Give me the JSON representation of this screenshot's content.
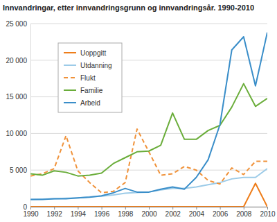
{
  "chart_data": {
    "type": "line",
    "title": "Innvandringar, etter innvandringsgrunn og innvandringsår. 1990-2010",
    "x": [
      1990,
      1991,
      1992,
      1993,
      1994,
      1995,
      1996,
      1997,
      1998,
      1999,
      2000,
      2001,
      2002,
      2003,
      2004,
      2005,
      2006,
      2007,
      2008,
      2009,
      2010
    ],
    "xlim": [
      1990,
      2010
    ],
    "xticks": [
      1990,
      1992,
      1994,
      1996,
      1998,
      2000,
      2002,
      2004,
      2006,
      2008,
      2010
    ],
    "ylim": [
      0,
      25000
    ],
    "yticks": [
      0,
      {
        "value": 5000,
        "label": "5 000"
      },
      {
        "value": 10000,
        "label": "10 000"
      },
      {
        "value": 15000,
        "label": "15 000"
      },
      {
        "value": 20000,
        "label": "20 000"
      },
      {
        "value": 25000,
        "label": "25 000"
      }
    ],
    "grid": true,
    "legend": "upper left",
    "series": [
      {
        "name": "Uoppgitt",
        "color": "#ee7d1a",
        "line_style": "solid",
        "values": [
          0,
          0,
          0,
          0,
          0,
          0,
          0,
          0,
          0,
          0,
          0,
          0,
          0,
          0,
          0,
          0,
          0,
          0,
          0,
          3200,
          0
        ]
      },
      {
        "name": "Utdanning",
        "color": "#9ccbe8",
        "line_style": "solid",
        "values": [
          1000,
          1050,
          1100,
          1150,
          1200,
          1350,
          1450,
          1600,
          1850,
          1950,
          2000,
          2300,
          2500,
          2500,
          2700,
          3000,
          3300,
          3800,
          4000,
          4000,
          5200
        ]
      },
      {
        "name": "Flukt",
        "color": "#f0923a",
        "line_style": "dashed",
        "values": [
          4200,
          4500,
          5200,
          9700,
          4900,
          3300,
          1900,
          2100,
          3300,
          10600,
          7500,
          4300,
          4500,
          5500,
          5000,
          3600,
          3100,
          5300,
          4400,
          6200,
          6200
        ]
      },
      {
        "name": "Familie",
        "color": "#6aad3a",
        "line_style": "solid",
        "values": [
          4500,
          4300,
          4900,
          4700,
          4200,
          4300,
          4600,
          5900,
          6700,
          7500,
          7600,
          8400,
          12800,
          9200,
          9200,
          10400,
          11100,
          13600,
          16800,
          13700,
          14800
        ]
      },
      {
        "name": "Arbeid",
        "color": "#3a8ec9",
        "line_style": "solid",
        "values": [
          1000,
          1000,
          1100,
          1100,
          1200,
          1300,
          1500,
          1900,
          2500,
          2000,
          2000,
          2400,
          2700,
          2400,
          4000,
          6400,
          11200,
          21400,
          23200,
          16500,
          23800
        ]
      }
    ]
  }
}
